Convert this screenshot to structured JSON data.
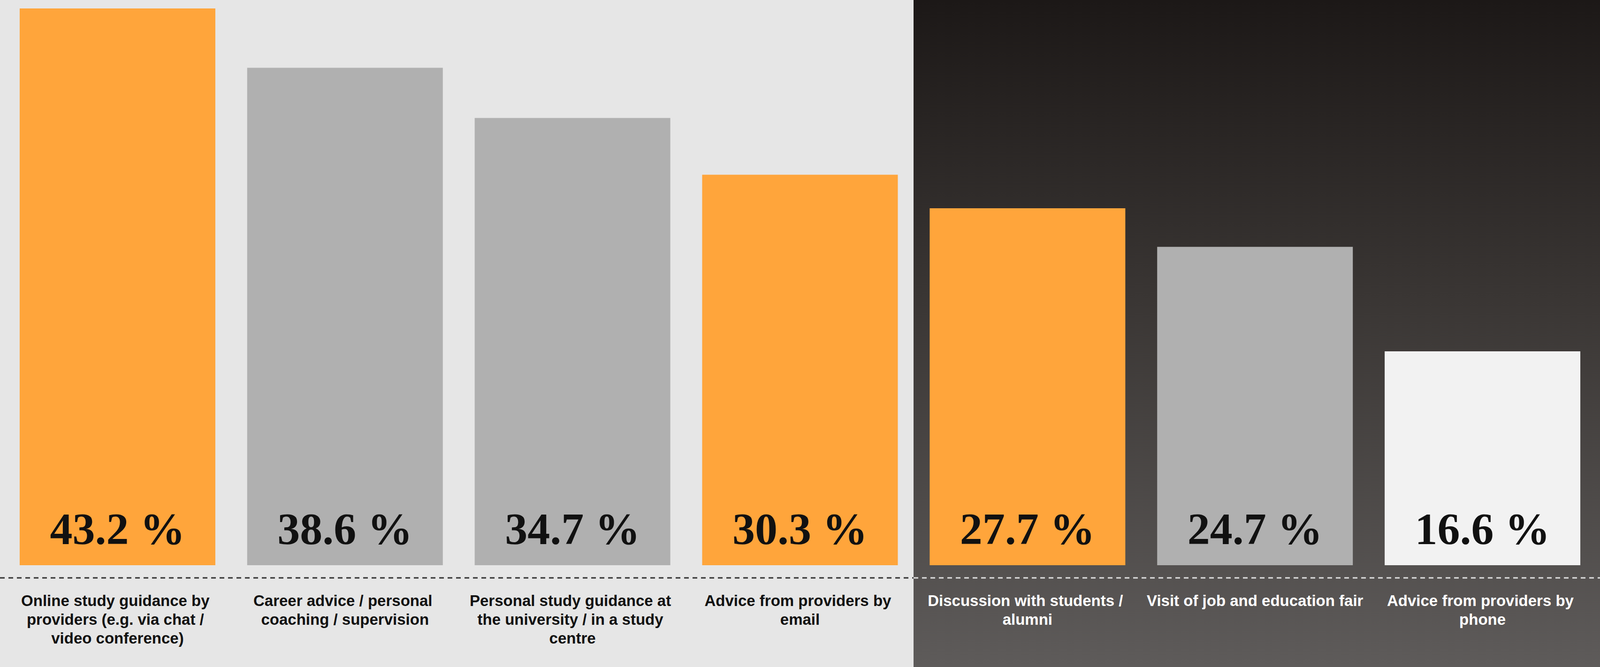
{
  "chart_data": {
    "type": "bar",
    "categories": [
      "Online study guidance by providers (e.g. via chat / video conference)",
      "Career advice / personal coaching / supervision",
      "Personal study guidance at the university / in a study centre",
      "Advice from providers by email",
      "Discussion with students / alumni",
      "Visit of job and education fair",
      "Advice from providers by phone"
    ],
    "values": [
      43.2,
      38.6,
      34.7,
      30.3,
      27.7,
      24.7,
      16.6
    ],
    "value_labels": [
      "43.2 %",
      "38.6 %",
      "34.7 %",
      "30.3 %",
      "27.7 %",
      "24.7 %",
      "16.6 %"
    ],
    "colors": [
      "#ffa53b",
      "#b0b0b0",
      "#b0b0b0",
      "#ffa53b",
      "#ffa53b",
      "#b0b0b0",
      "#f2f2f2"
    ],
    "ylim": [
      0,
      43.2
    ],
    "data_labels": true,
    "tick_labels": "x",
    "grid": false
  }
}
